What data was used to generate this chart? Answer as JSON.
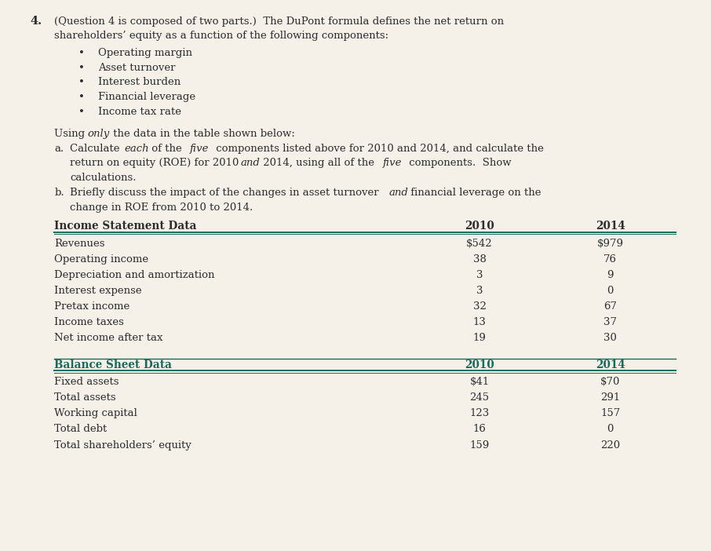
{
  "bg_color": "#f5f0e8",
  "text_color": "#2d2d2d",
  "header_color": "#1a6b5a",
  "bullets": [
    "Operating margin",
    "Asset turnover",
    "Interest burden",
    "Financial leverage",
    "Income tax rate"
  ],
  "inc_stmt_header": "Income Statement Data",
  "col_2010": "2010",
  "col_2014": "2014",
  "inc_stmt_rows": [
    [
      "Revenues",
      "$542",
      "$979"
    ],
    [
      "Operating income",
      "38",
      "76"
    ],
    [
      "Depreciation and amortization",
      "3",
      "9"
    ],
    [
      "Interest expense",
      "3",
      "0"
    ],
    [
      "Pretax income",
      "32",
      "67"
    ],
    [
      "Income taxes",
      "13",
      "37"
    ],
    [
      "Net income after tax",
      "19",
      "30"
    ]
  ],
  "bal_sheet_header": "Balance Sheet Data",
  "bal_sheet_rows": [
    [
      "Fixed assets",
      "$41",
      "$70"
    ],
    [
      "Total assets",
      "245",
      "291"
    ],
    [
      "Working capital",
      "123",
      "157"
    ],
    [
      "Total debt",
      "16",
      "0"
    ],
    [
      "Total shareholders’ equity",
      "159",
      "220"
    ]
  ],
  "font_family": "DejaVu Serif",
  "font_size_body": 9.5,
  "font_size_header": 9.8,
  "font_size_q": 10.5
}
